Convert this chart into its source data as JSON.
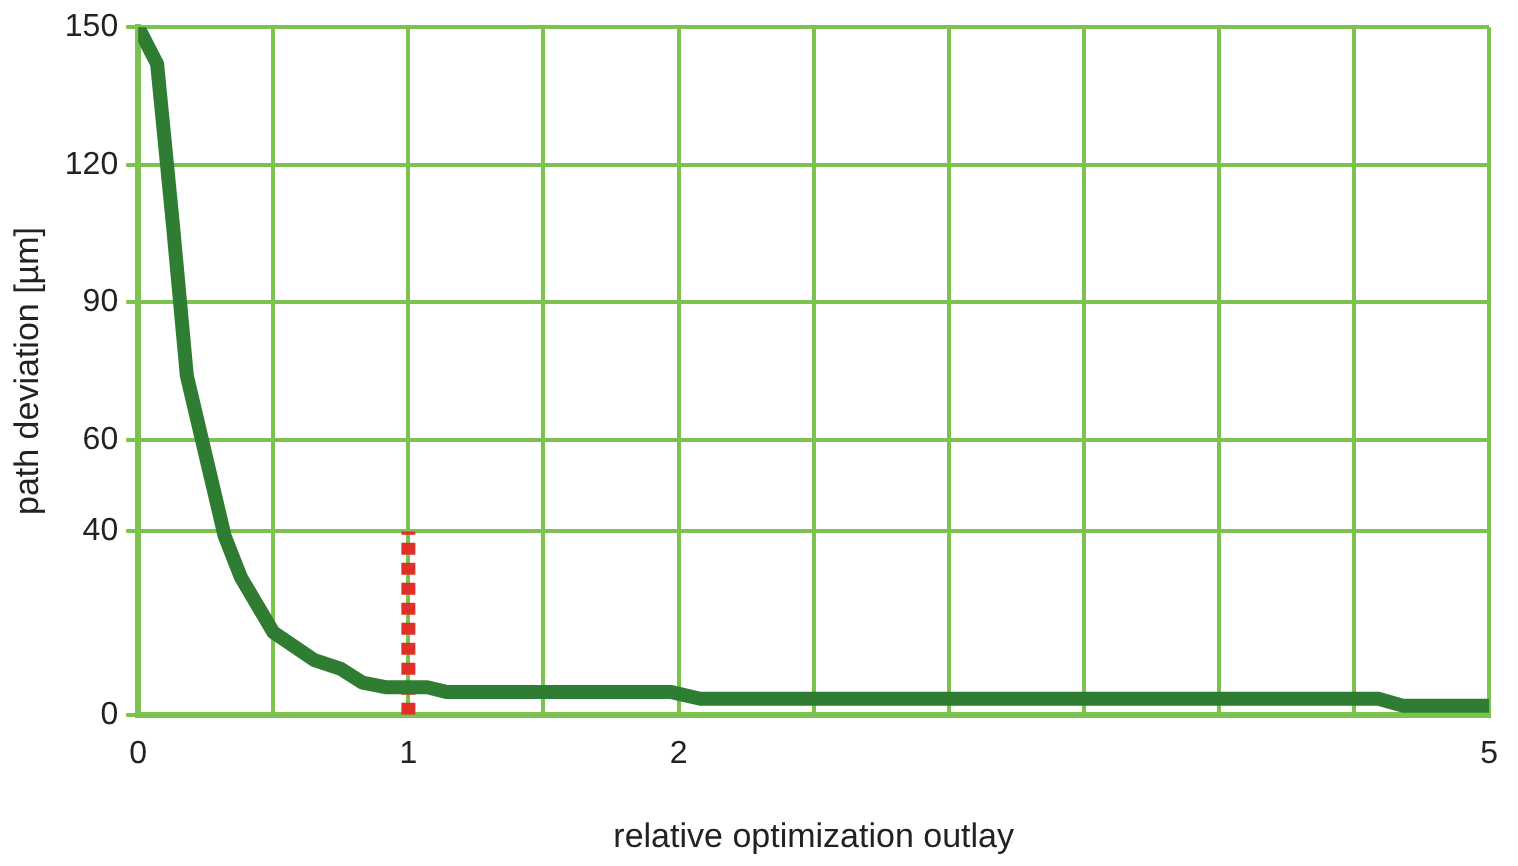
{
  "chart_data": {
    "type": "line",
    "xlabel": "relative optimization outlay",
    "ylabel": "path deviation [µm]",
    "xlim": [
      0,
      5
    ],
    "ylim": [
      0,
      150
    ],
    "xticks": [
      0,
      {
        "value": 0.5,
        "label": null
      },
      1,
      {
        "value": 1.5,
        "label": null
      },
      2,
      {
        "value": 2.5,
        "label": null
      },
      {
        "value": 3,
        "label": null
      },
      {
        "value": 3.5,
        "label": null
      },
      {
        "value": 4,
        "label": null
      },
      {
        "value": 4.5,
        "label": null
      },
      5
    ],
    "yticks": [
      0,
      40,
      60,
      90,
      120,
      150
    ],
    "grid": true,
    "legend": false,
    "marker": "none",
    "series": [
      {
        "color": "#2e7d32",
        "line_style": "solid",
        "x": [
          0,
          0.07,
          0.13,
          0.18,
          0.24,
          0.32,
          0.38,
          0.5,
          0.65,
          0.75,
          0.83,
          0.92,
          1.07,
          1.14,
          1.97,
          2.08,
          4.59,
          4.68,
          5
        ],
        "values": [
          150,
          142,
          106,
          74,
          59,
          39,
          30,
          18,
          12,
          10,
          7,
          6,
          6,
          5,
          5,
          3.5,
          3.5,
          2,
          2
        ]
      },
      {
        "color": "#e0302a",
        "line_style": "dotted",
        "x": [
          1,
          1
        ],
        "values": [
          0,
          40
        ]
      }
    ]
  }
}
